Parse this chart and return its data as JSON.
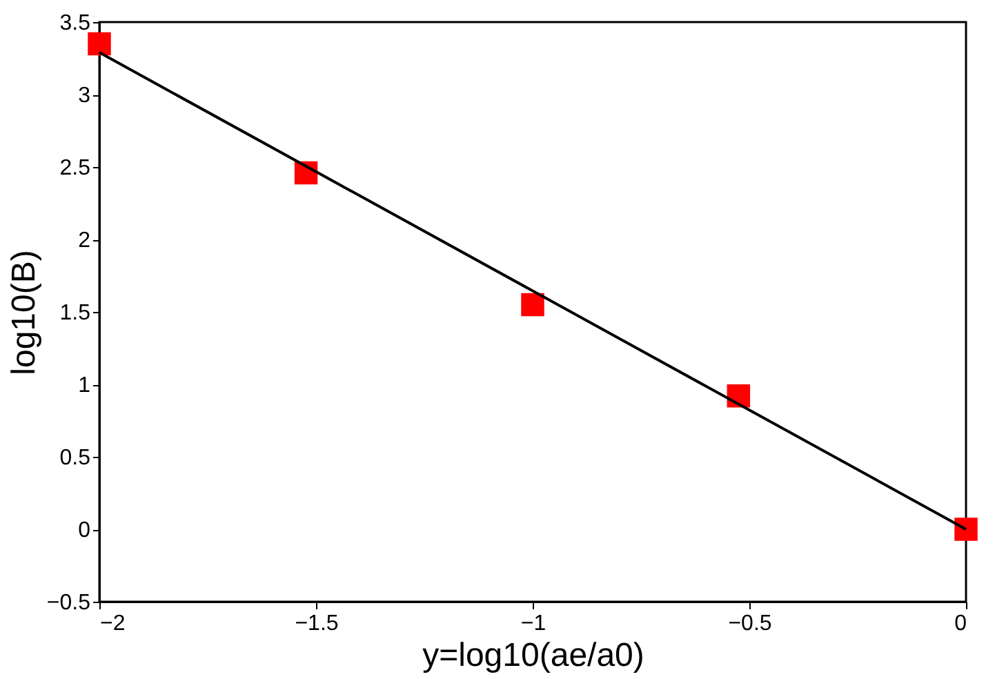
{
  "chart_data": {
    "type": "scatter",
    "xlabel": "y=log10(ae/a0)",
    "ylabel": "log10(B)",
    "x": [
      -2,
      -1.523,
      -1.0,
      -0.525,
      0
    ],
    "series": [
      {
        "color": "#ff0000",
        "marker": "square",
        "values": [
          3.35,
          2.46,
          1.55,
          0.92,
          0
        ]
      },
      {
        "type": "line",
        "color": "#000000",
        "x": [
          -2,
          0
        ],
        "values": [
          3.29,
          0
        ],
        "line_style": "solid"
      }
    ],
    "xlim": [
      -2,
      0
    ],
    "ylim": [
      -0.5,
      3.5
    ],
    "xticks": [
      -2,
      -1.5,
      -1,
      -0.5,
      0
    ],
    "yticks": [
      -0.5,
      0,
      0.5,
      1,
      1.5,
      2,
      2.5,
      3,
      3.5
    ],
    "grid": false
  }
}
